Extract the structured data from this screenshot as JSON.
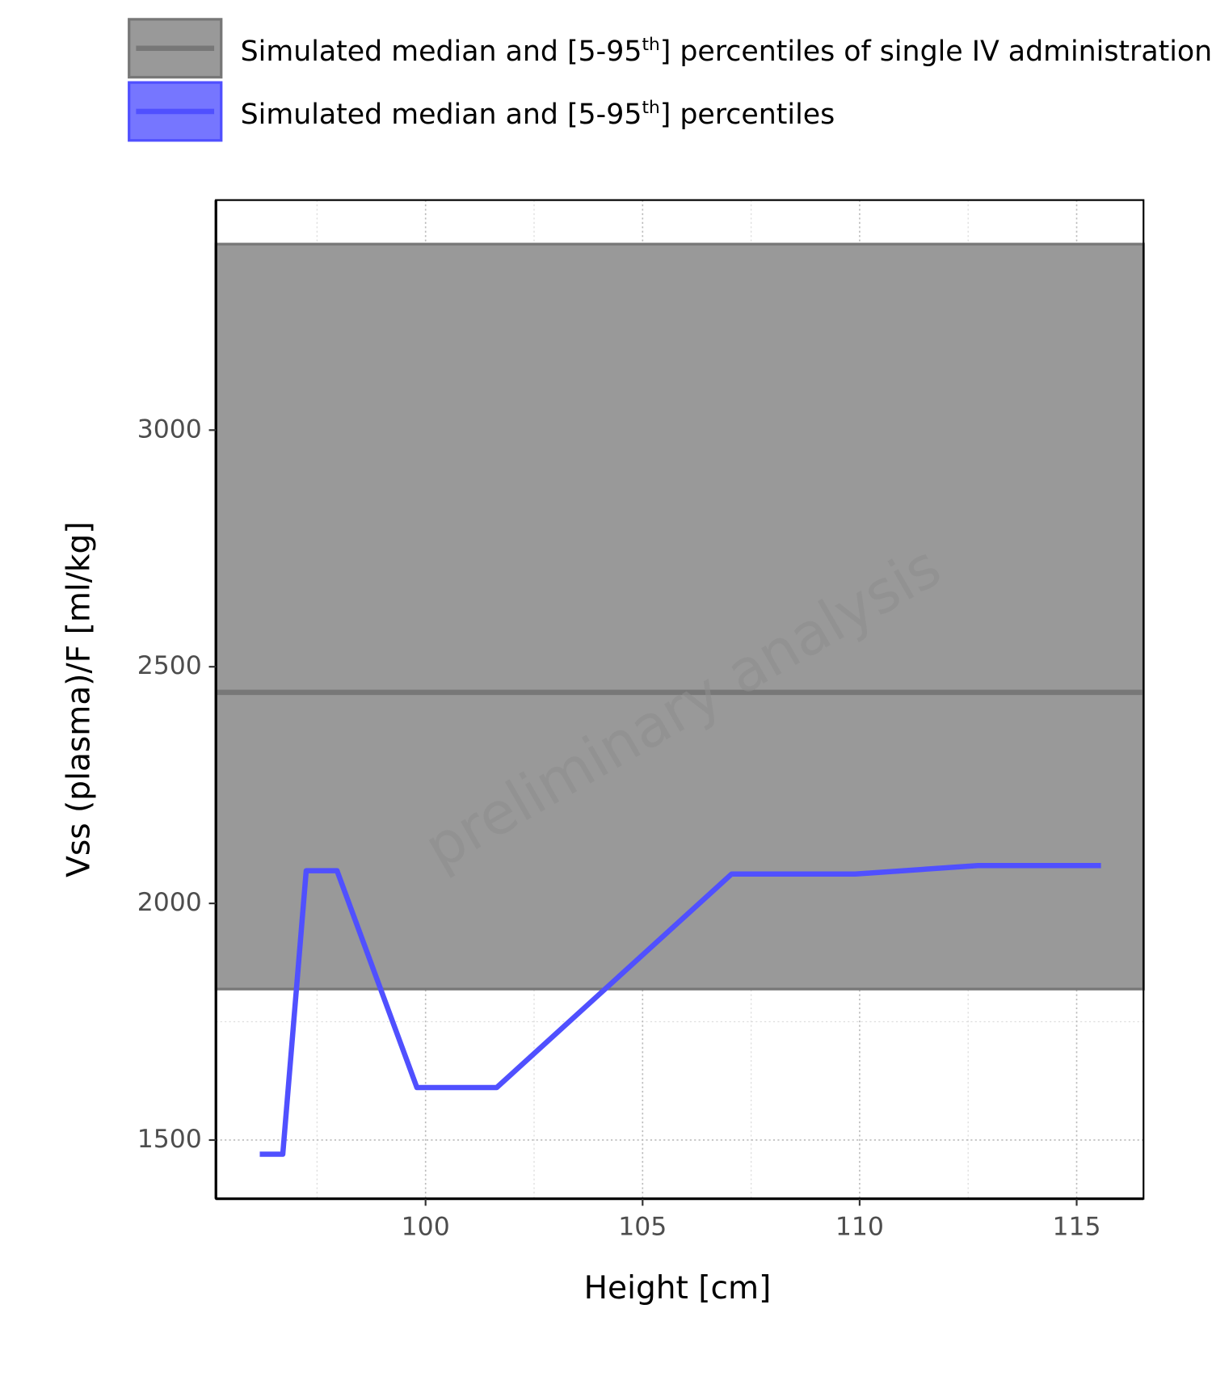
{
  "chart_data": {
    "type": "line",
    "x_label": "Height [cm]",
    "y_label": "Vss (plasma)/F [ml/kg]",
    "watermark": "preliminary analysis",
    "xlim": [
      95.17,
      116.54
    ],
    "xticks": [
      100,
      105,
      110,
      115
    ],
    "xminor": [
      97.5,
      102.5,
      107.5,
      112.5
    ],
    "ylim": [
      1376,
      3486
    ],
    "yticks": [
      1500,
      2000,
      2500,
      3000
    ],
    "yminor": [
      1750,
      2250,
      2750,
      3250
    ],
    "grid": true,
    "series": [
      {
        "name": "Simulated median and [5-95th] percentiles of single IV administration",
        "color": "#999999",
        "type": "band",
        "lower": 1819,
        "median": 2446,
        "upper": 3393
      },
      {
        "name": "Simulated median and [5-95th] percentiles",
        "color": "#5050ff",
        "x": [
          96.18,
          96.71,
          97.25,
          97.96,
          99.8,
          101.64,
          107.05,
          109.9,
          112.73,
          115.56
        ],
        "values": [
          1470,
          1470,
          2069,
          2069,
          1611,
          1611,
          2062,
          2062,
          2080,
          2080
        ]
      }
    ]
  }
}
